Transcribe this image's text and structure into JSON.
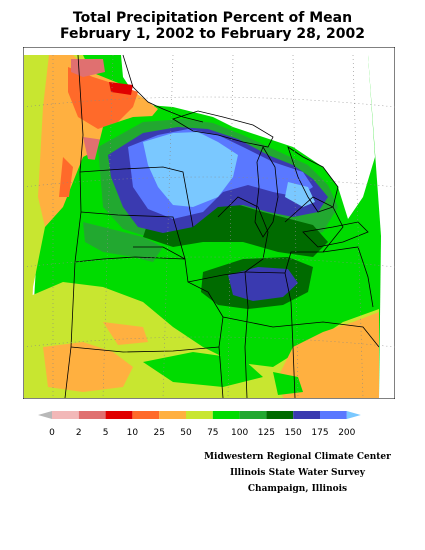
{
  "header": {
    "title_line1": "Total Precipitation Percent of Mean",
    "title_line2": "February 1, 2002 to February 28, 2002"
  },
  "legend": {
    "ticks": [
      "0",
      "2",
      "5",
      "10",
      "25",
      "50",
      "75",
      "100",
      "125",
      "150",
      "175",
      "200"
    ],
    "colors": [
      "#b8b8b8",
      "#f2b8b8",
      "#e07070",
      "#e00000",
      "#ff6a2a",
      "#ffb040",
      "#c8e630",
      "#00dc00",
      "#22a830",
      "#006b00",
      "#3a3ab0",
      "#5a78ff",
      "#7ac8ff"
    ]
  },
  "credits": {
    "line1": "Midwestern Regional Climate Center",
    "line2": "Illinois State Water Survey",
    "line3": "Champaign, Illinois"
  }
}
